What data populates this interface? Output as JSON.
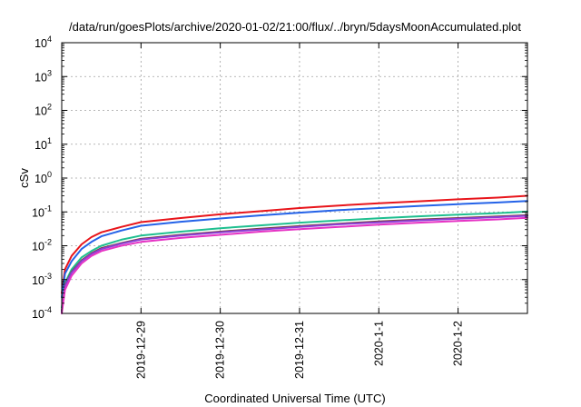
{
  "chart_data": {
    "type": "line",
    "title": "/data/run/goesPlots/archive/2020-01-02/21:00/flux/../bryn/5daysMoonAccumulated.plot",
    "xlabel": "Coordinated Universal Time (UTC)",
    "ylabel": "cSv",
    "yscale": "log",
    "ylim": [
      0.0001,
      10000
    ],
    "xlim": [
      "2019-12-28 00:00",
      "2020-01-02 21:00"
    ],
    "x_ticks": [
      "2019-12-29",
      "2019-12-30",
      "2019-12-31",
      "2020-1-1",
      "2020-1-2"
    ],
    "y_ticks": [
      {
        "mantissa": "10",
        "exp": "-4",
        "value": 0.0001
      },
      {
        "mantissa": "10",
        "exp": "-3",
        "value": 0.001
      },
      {
        "mantissa": "10",
        "exp": "-2",
        "value": 0.01
      },
      {
        "mantissa": "10",
        "exp": "-1",
        "value": 0.1
      },
      {
        "mantissa": "10",
        "exp": "0",
        "value": 1
      },
      {
        "mantissa": "10",
        "exp": "1",
        "value": 10
      },
      {
        "mantissa": "10",
        "exp": "2",
        "value": 100
      },
      {
        "mantissa": "10",
        "exp": "3",
        "value": 1000
      },
      {
        "mantissa": "10",
        "exp": "4",
        "value": 10000
      }
    ],
    "grid": true,
    "x": [
      "2019-12-28 00:00",
      "2019-12-28 01:00",
      "2019-12-28 03:00",
      "2019-12-28 06:00",
      "2019-12-28 09:00",
      "2019-12-28 12:00",
      "2019-12-28 18:00",
      "2019-12-29 00:00",
      "2019-12-29 12:00",
      "2019-12-30 00:00",
      "2019-12-30 12:00",
      "2019-12-31 00:00",
      "2019-12-31 12:00",
      "2020-01-01 00:00",
      "2020-01-01 12:00",
      "2020-01-02 00:00",
      "2020-01-02 12:00",
      "2020-01-02 21:00"
    ],
    "series": [
      {
        "color": "#e8151b",
        "values": [
          0.0004,
          0.002,
          0.005,
          0.011,
          0.018,
          0.025,
          0.036,
          0.05,
          0.066,
          0.085,
          0.105,
          0.13,
          0.155,
          0.18,
          0.205,
          0.235,
          0.265,
          0.3
        ]
      },
      {
        "color": "#2563e8",
        "values": [
          0.0003,
          0.0015,
          0.0035,
          0.008,
          0.013,
          0.019,
          0.028,
          0.039,
          0.051,
          0.064,
          0.079,
          0.095,
          0.113,
          0.13,
          0.15,
          0.17,
          0.19,
          0.21
        ]
      },
      {
        "color": "#1fbf8f",
        "values": [
          0.00015,
          0.0008,
          0.002,
          0.0045,
          0.007,
          0.01,
          0.015,
          0.02,
          0.026,
          0.033,
          0.04,
          0.048,
          0.056,
          0.065,
          0.074,
          0.083,
          0.092,
          0.102
        ]
      },
      {
        "color": "#7a3d3d",
        "values": [
          0.00012,
          0.0007,
          0.0017,
          0.0037,
          0.006,
          0.0085,
          0.012,
          0.016,
          0.021,
          0.026,
          0.032,
          0.038,
          0.045,
          0.052,
          0.059,
          0.066,
          0.073,
          0.08
        ]
      },
      {
        "color": "#8b3fd6",
        "values": [
          0.00011,
          0.00065,
          0.0016,
          0.0035,
          0.0057,
          0.008,
          0.0115,
          0.0153,
          0.02,
          0.025,
          0.03,
          0.036,
          0.043,
          0.049,
          0.056,
          0.063,
          0.07,
          0.077
        ]
      },
      {
        "color": "#e633c4",
        "values": [
          0.0001,
          0.0005,
          0.0013,
          0.003,
          0.005,
          0.007,
          0.01,
          0.013,
          0.017,
          0.021,
          0.026,
          0.031,
          0.036,
          0.042,
          0.048,
          0.054,
          0.06,
          0.067
        ]
      }
    ]
  }
}
